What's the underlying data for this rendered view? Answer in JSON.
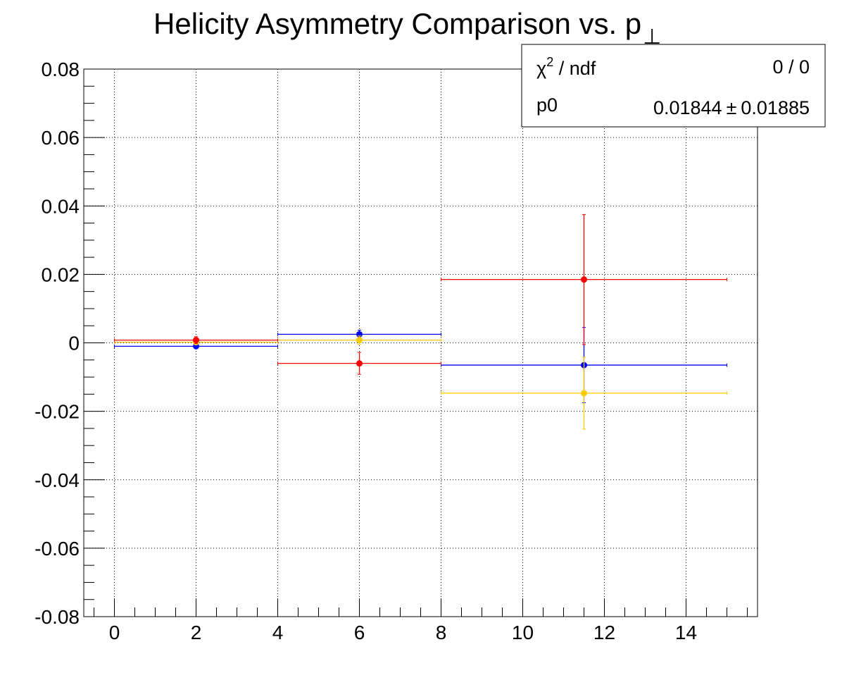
{
  "chart_data": {
    "type": "scatter",
    "title": "Helicity Asymmetry Comparison vs. p",
    "title_subscript_symbol": "⊥",
    "xlabel": "",
    "ylabel": "",
    "xlim": [
      -0.75,
      15.75
    ],
    "ylim": [
      -0.08,
      0.08
    ],
    "x_ticks": [
      "0",
      "2",
      "4",
      "6",
      "8",
      "10",
      "12",
      "14"
    ],
    "y_ticks": [
      "0.08",
      "0.06",
      "0.04",
      "0.02",
      "0",
      "-0.02",
      "-0.04",
      "-0.06",
      "-0.08"
    ],
    "grid": true,
    "series": [
      {
        "color": "#0000ff",
        "points": [
          {
            "x": 2.0,
            "y": -0.001,
            "x_low": 0,
            "x_high": 4,
            "y_err": 0.0004
          },
          {
            "x": 6.0,
            "y": 0.0025,
            "x_low": 4,
            "x_high": 8,
            "y_err": 0.0012
          },
          {
            "x": 11.5,
            "y": -0.0065,
            "x_low": 8,
            "x_high": 15,
            "y_err": 0.011
          }
        ]
      },
      {
        "color": "#ffcc00",
        "points": [
          {
            "x": 2.0,
            "y": 0.0002,
            "x_low": 0,
            "x_high": 4,
            "y_err": 0.0005
          },
          {
            "x": 6.0,
            "y": 0.0008,
            "x_low": 4,
            "x_high": 8,
            "y_err": 0.0012
          },
          {
            "x": 11.5,
            "y": -0.0147,
            "x_low": 8,
            "x_high": 15,
            "y_err": 0.0105
          }
        ]
      },
      {
        "color": "#ff0000",
        "points": [
          {
            "x": 2.0,
            "y": 0.0008,
            "x_low": 0,
            "x_high": 4,
            "y_err": 0.001
          },
          {
            "x": 6.0,
            "y": -0.006,
            "x_low": 4,
            "x_high": 8,
            "y_err": 0.0032
          },
          {
            "x": 11.5,
            "y": 0.0185,
            "x_low": 8,
            "x_high": 15,
            "y_err": 0.019
          }
        ]
      }
    ],
    "stats_box": {
      "chi_label": "χ",
      "chi_sup": "2",
      "ndf_label": " / ndf",
      "chi_value": "0 / 0",
      "p0_label": "p0",
      "p0_value": "0.01844",
      "pm_symbol": "±",
      "p0_error": "0.01885"
    }
  }
}
